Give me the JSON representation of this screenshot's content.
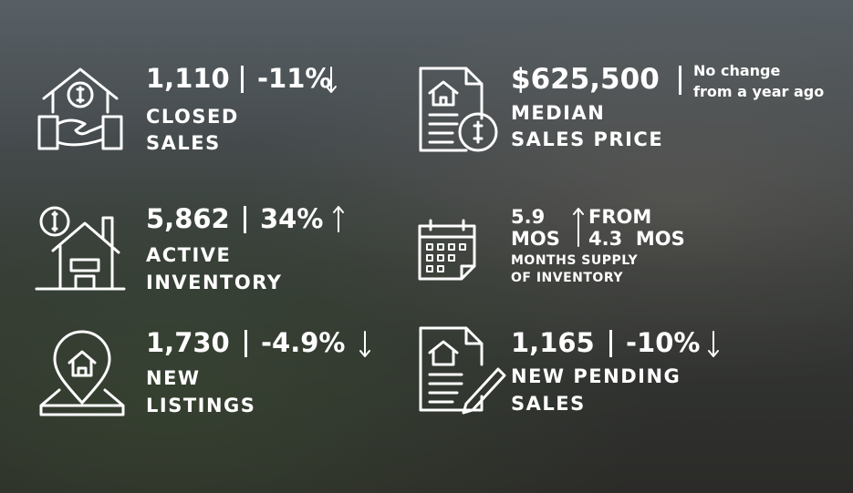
{
  "stats": [
    {
      "value": "1,110",
      "change": "-11%",
      "label_lines": [
        "CLOSED",
        "SALES"
      ]
    },
    {
      "value": "$625,500",
      "note_lines": [
        "No change",
        "from a year ago"
      ],
      "label_lines": [
        "MEDIAN",
        "SALES PRICE"
      ]
    },
    {
      "value": "5,862",
      "change": "34%",
      "label_lines": [
        "ACTIVE",
        "INVENTORY"
      ]
    },
    {
      "value_lines": [
        "5.9",
        "MOS"
      ],
      "from_lines": [
        "FROM",
        "4.3  MOS"
      ],
      "label_lines": [
        "MONTHS SUPPLY",
        "OF INVENTORY"
      ]
    },
    {
      "value": "1,730",
      "change": "-4.9%",
      "label_lines": [
        "NEW",
        "LISTINGS"
      ]
    },
    {
      "value": "1,165",
      "change": "-10%",
      "label_lines": [
        "NEW PENDING",
        "SALES"
      ]
    }
  ]
}
